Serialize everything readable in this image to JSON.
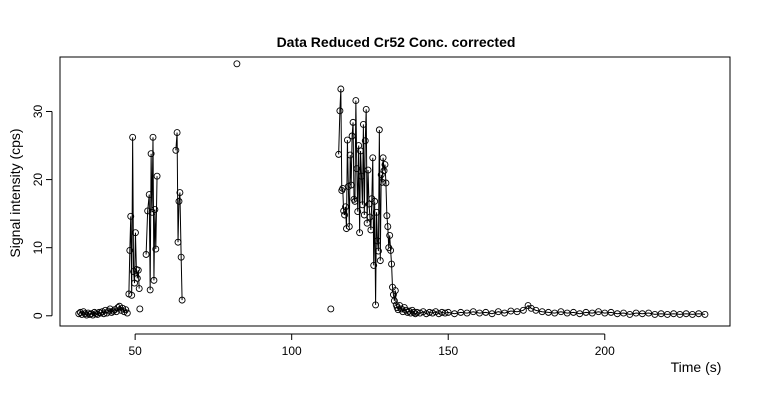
{
  "chart_data": {
    "type": "line",
    "title": "Data Reduced Cr52 Conc. corrected",
    "xlabel": "Time (s)",
    "ylabel": "Signal intensity (cps)",
    "xlim": [
      26,
      240
    ],
    "ylim": [
      -1.5,
      38
    ],
    "x_ticks": [
      50,
      100,
      150,
      200
    ],
    "y_ticks": [
      0,
      10,
      20,
      30
    ],
    "grid": false,
    "markers": "open-circle",
    "series": [
      {
        "segments": [
          [
            [
              32.0,
              0.3
            ],
            [
              32.5,
              0.5
            ],
            [
              33.0,
              0.2
            ],
            [
              33.5,
              0.6
            ],
            [
              34.0,
              0.3
            ],
            [
              34.5,
              0.1
            ],
            [
              35.0,
              0.4
            ],
            [
              35.5,
              0.2
            ],
            [
              36.0,
              0.3
            ],
            [
              36.5,
              0.1
            ],
            [
              37.0,
              0.5
            ],
            [
              37.5,
              0.3
            ],
            [
              38.0,
              0.2
            ],
            [
              38.5,
              0.5
            ],
            [
              39.0,
              0.4
            ],
            [
              39.5,
              0.6
            ],
            [
              40.0,
              0.3
            ],
            [
              40.5,
              0.8
            ],
            [
              41.0,
              0.4
            ],
            [
              41.5,
              0.7
            ],
            [
              42.0,
              1.0
            ],
            [
              42.5,
              0.5
            ],
            [
              43.0,
              0.7
            ],
            [
              43.5,
              0.9
            ],
            [
              44.0,
              0.6
            ],
            [
              44.5,
              1.2
            ],
            [
              45.0,
              1.4
            ],
            [
              45.5,
              0.8
            ],
            [
              46.0,
              1.1
            ],
            [
              46.5,
              0.6
            ],
            [
              47.0,
              0.9
            ],
            [
              47.5,
              0.4
            ]
          ],
          [
            [
              48.0,
              3.2
            ],
            [
              48.3,
              9.6
            ],
            [
              48.6,
              14.6
            ],
            [
              48.9,
              3.0
            ],
            [
              49.2,
              26.2
            ],
            [
              49.5,
              6.5
            ],
            [
              49.8,
              4.8
            ],
            [
              50.1,
              12.2
            ],
            [
              50.4,
              6.8
            ],
            [
              50.7,
              5.5
            ],
            [
              51.0,
              6.7
            ],
            [
              51.3,
              4.0
            ]
          ],
          [
            [
              53.5,
              9.0
            ],
            [
              54.0,
              15.4
            ],
            [
              54.5,
              17.8
            ],
            [
              54.8,
              3.8
            ],
            [
              55.1,
              23.8
            ],
            [
              55.4,
              15.2
            ],
            [
              55.7,
              26.2
            ],
            [
              56.0,
              5.2
            ],
            [
              56.3,
              15.6
            ],
            [
              56.6,
              9.8
            ],
            [
              57.0,
              20.5
            ]
          ],
          [
            [
              63.0,
              24.3
            ],
            [
              63.4,
              26.9
            ],
            [
              63.7,
              10.8
            ],
            [
              64.0,
              16.8
            ],
            [
              64.3,
              18.1
            ],
            [
              64.7,
              8.6
            ],
            [
              65.0,
              2.3
            ]
          ],
          [
            [
              115.0,
              23.7
            ],
            [
              115.4,
              30.1
            ],
            [
              115.7,
              33.3
            ],
            [
              116.0,
              18.4
            ],
            [
              116.3,
              18.7
            ],
            [
              116.6,
              15.4
            ],
            [
              116.9,
              14.8
            ],
            [
              117.2,
              16.0
            ],
            [
              117.5,
              12.8
            ],
            [
              117.8,
              25.8
            ],
            [
              118.1,
              19.0
            ],
            [
              118.4,
              13.1
            ],
            [
              118.7,
              23.6
            ],
            [
              119.0,
              19.2
            ],
            [
              119.3,
              26.4
            ],
            [
              119.6,
              28.4
            ],
            [
              119.9,
              17.1
            ],
            [
              120.2,
              16.8
            ],
            [
              120.5,
              31.6
            ],
            [
              120.8,
              21.6
            ],
            [
              121.1,
              15.3
            ],
            [
              121.4,
              25.0
            ],
            [
              121.7,
              12.2
            ],
            [
              122.0,
              24.2
            ],
            [
              122.3,
              20.5
            ],
            [
              122.6,
              16.3
            ],
            [
              122.9,
              28.1
            ],
            [
              123.2,
              14.8
            ],
            [
              123.5,
              25.7
            ],
            [
              123.8,
              30.3
            ],
            [
              124.1,
              13.6
            ],
            [
              124.4,
              21.4
            ],
            [
              124.7,
              16.4
            ],
            [
              125.0,
              14.5
            ],
            [
              125.3,
              12.6
            ],
            [
              125.6,
              17.2
            ],
            [
              125.9,
              23.2
            ],
            [
              126.2,
              7.4
            ],
            [
              126.5,
              16.8
            ],
            [
              126.8,
              1.6
            ],
            [
              127.1,
              15.2
            ],
            [
              127.4,
              11.0
            ],
            [
              127.7,
              9.5
            ],
            [
              128.0,
              27.3
            ],
            [
              128.3,
              8.1
            ],
            [
              128.6,
              20.7
            ],
            [
              128.9,
              19.6
            ],
            [
              129.2,
              23.2
            ],
            [
              129.5,
              21.3
            ],
            [
              129.8,
              22.2
            ],
            [
              130.1,
              19.5
            ],
            [
              130.4,
              14.7
            ],
            [
              130.7,
              13.1
            ],
            [
              131.0,
              10.0
            ],
            [
              131.3,
              11.8
            ],
            [
              131.6,
              9.6
            ],
            [
              131.9,
              7.6
            ],
            [
              132.2,
              4.2
            ],
            [
              132.5,
              3.1
            ],
            [
              132.8,
              2.2
            ],
            [
              133.1,
              3.7
            ],
            [
              133.4,
              1.6
            ],
            [
              133.7,
              1.2
            ],
            [
              134.0,
              0.9
            ],
            [
              134.5,
              1.5
            ],
            [
              135.0,
              1.0
            ],
            [
              135.5,
              0.6
            ],
            [
              136.0,
              1.2
            ],
            [
              136.5,
              0.8
            ],
            [
              137.0,
              0.5
            ],
            [
              137.5,
              0.7
            ],
            [
              138.0,
              0.4
            ],
            [
              138.5,
              0.8
            ],
            [
              139.0,
              0.5
            ],
            [
              139.5,
              0.3
            ],
            [
              140.0,
              0.5
            ],
            [
              141.0,
              0.4
            ],
            [
              142.0,
              0.6
            ],
            [
              143.0,
              0.3
            ],
            [
              144.0,
              0.5
            ],
            [
              145.0,
              0.4
            ],
            [
              146.0,
              0.6
            ],
            [
              147.0,
              0.3
            ],
            [
              148.0,
              0.5
            ],
            [
              149.0,
              0.4
            ],
            [
              150.0,
              0.5
            ],
            [
              152.0,
              0.3
            ],
            [
              154.0,
              0.5
            ],
            [
              156.0,
              0.4
            ],
            [
              158.0,
              0.6
            ],
            [
              160.0,
              0.4
            ],
            [
              162.0,
              0.5
            ],
            [
              164.0,
              0.3
            ],
            [
              166.0,
              0.6
            ],
            [
              168.0,
              0.4
            ],
            [
              170.0,
              0.7
            ],
            [
              172.0,
              0.6
            ],
            [
              174.0,
              0.8
            ],
            [
              175.5,
              1.5
            ],
            [
              176.5,
              1.1
            ],
            [
              178.0,
              0.8
            ],
            [
              180.0,
              0.6
            ],
            [
              182.0,
              0.5
            ],
            [
              184.0,
              0.4
            ],
            [
              186.0,
              0.6
            ],
            [
              188.0,
              0.4
            ],
            [
              190.0,
              0.5
            ],
            [
              192.0,
              0.3
            ],
            [
              194.0,
              0.5
            ],
            [
              196.0,
              0.4
            ],
            [
              198.0,
              0.6
            ],
            [
              200.0,
              0.4
            ],
            [
              202.0,
              0.5
            ],
            [
              204.0,
              0.3
            ],
            [
              206.0,
              0.4
            ],
            [
              208.0,
              0.2
            ],
            [
              210.0,
              0.4
            ],
            [
              212.0,
              0.3
            ],
            [
              214.0,
              0.4
            ],
            [
              216.0,
              0.2
            ],
            [
              218.0,
              0.3
            ],
            [
              220.0,
              0.2
            ],
            [
              222.0,
              0.3
            ],
            [
              224.0,
              0.2
            ],
            [
              226.0,
              0.3
            ],
            [
              228.0,
              0.2
            ],
            [
              230.0,
              0.3
            ],
            [
              232.0,
              0.2
            ]
          ]
        ],
        "isolated_points": [
          [
            51.5,
            1.0
          ],
          [
            82.5,
            37.0
          ],
          [
            112.5,
            1.0
          ]
        ]
      }
    ]
  }
}
